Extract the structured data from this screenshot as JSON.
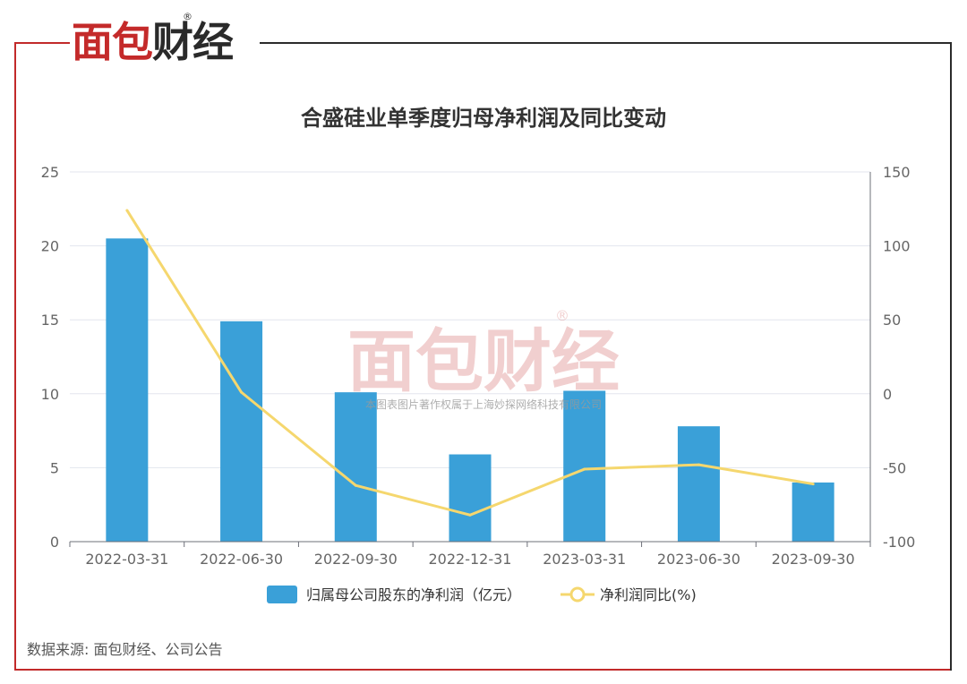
{
  "logo": {
    "text_red": "面包",
    "text_dark": "财经",
    "registered": "®"
  },
  "watermark": {
    "text": "面包财经",
    "registered": "®",
    "subtext": "本图表图片著作权属于上海妙探网络科技有限公司"
  },
  "source": "数据来源: 面包财经、公司公告",
  "colors": {
    "bar": "#3aa0d8",
    "line": "#f5d76e",
    "frame_red": "#c22a2a"
  },
  "chart_data": {
    "type": "bar",
    "title": "合盛硅业单季度归母净利润及同比变动",
    "categories": [
      "2022-03-31",
      "2022-06-30",
      "2022-09-30",
      "2022-12-31",
      "2023-03-31",
      "2023-06-30",
      "2023-09-30"
    ],
    "series": [
      {
        "name": "归属母公司股东的净利润（亿元）",
        "type": "bar",
        "axis": "left",
        "values": [
          20.5,
          14.9,
          10.1,
          5.9,
          10.2,
          7.8,
          4.0
        ]
      },
      {
        "name": "净利润同比(%)",
        "type": "line",
        "axis": "right",
        "values": [
          124,
          1,
          -62,
          -82,
          -51,
          -48,
          -61
        ]
      }
    ],
    "y_left": {
      "ylim": [
        0,
        25
      ],
      "ticks": [
        "0",
        "5",
        "10",
        "15",
        "20",
        "25"
      ]
    },
    "y_right": {
      "ylim": [
        -100,
        150
      ],
      "ticks": [
        "-100",
        "-50",
        "0",
        "50",
        "100",
        "150"
      ]
    },
    "legend_position": "bottom",
    "grid": true
  }
}
